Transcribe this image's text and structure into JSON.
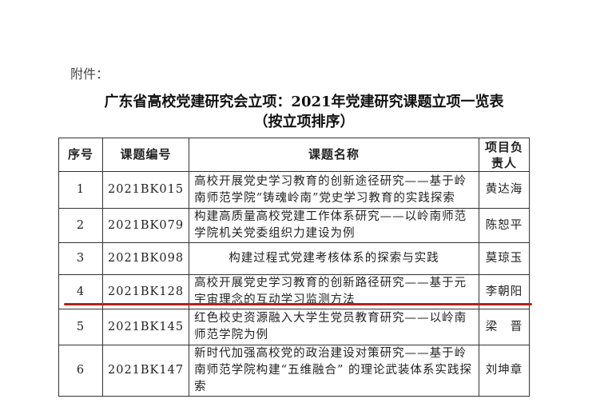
{
  "attachment_label": "附件：",
  "title": "广东省高校党建研究会立项：2021年党建研究课题立项一览表",
  "subtitle": "（按立项排序）",
  "table": {
    "headers": [
      "序号",
      "课题编号",
      "课题名称",
      "项目负责人"
    ],
    "rows": [
      {
        "no": "1",
        "code": "2021BK015",
        "name": "高校开展党史学习教育的创新途径研究——基于岭南师范学院“铸魂岭南”党史学习教育的实践探索",
        "lead": "黄达海"
      },
      {
        "no": "2",
        "code": "2021BK079",
        "name": "构建高质量高校党建工作体系研究——以岭南师范学院机关党委组织力建设为例",
        "lead": "陈恕平"
      },
      {
        "no": "3",
        "code": "2021BK098",
        "name": "构建过程式党建考核体系的探索与实践",
        "lead": "莫琼玉"
      },
      {
        "no": "4",
        "code": "2021BK128",
        "name": "高校开展党史学习教育的创新路径研究——基于元宇宙理念的互动学习监测方法",
        "lead": "李朝阳"
      },
      {
        "no": "5",
        "code": "2021BK145",
        "name": "红色校史资源融入大学生党员教育研究——以岭南师范学院为例",
        "lead": "梁　晋"
      },
      {
        "no": "6",
        "code": "2021BK147",
        "name": "新时代加强高校党的政治建设对策研究——基于岭南师范学院构建“五维融合” 的理论武装体系实践探索",
        "lead": "刘坤章"
      }
    ]
  },
  "highlight_color": "#b3221c"
}
